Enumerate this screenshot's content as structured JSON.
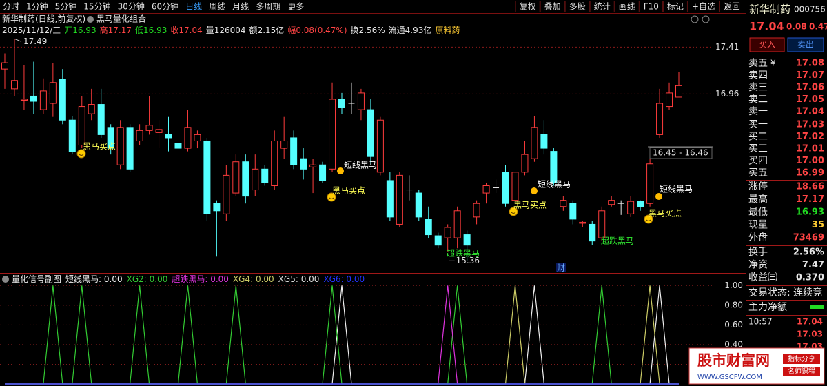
{
  "toolbar": {
    "left": [
      "分时",
      "1分钟",
      "5分钟",
      "15分钟",
      "30分钟",
      "60分钟",
      "日线",
      "周线",
      "月线",
      "多周期",
      "更多"
    ],
    "active_index": 6,
    "right": [
      "复权",
      "叠加",
      "多股",
      "统计",
      "画线",
      "F10",
      "标记",
      "+自选",
      "返回"
    ]
  },
  "header": {
    "title": "新华制药(日线,前复权)",
    "indicator": "黑马量化组合",
    "date": "2025/11/12/三",
    "stats": [
      {
        "label": "开",
        "value": "16.93",
        "color": "#22dd22"
      },
      {
        "label": "高",
        "value": "17.17",
        "color": "#ff4444"
      },
      {
        "label": "低",
        "value": "16.93",
        "color": "#22dd22"
      },
      {
        "label": "收",
        "value": "17.04",
        "color": "#ff4444"
      },
      {
        "label": "量",
        "value": "126004",
        "color": "#e6e6e6"
      },
      {
        "label": "额",
        "value": "2.15亿",
        "color": "#e6e6e6"
      },
      {
        "label": "幅",
        "value": "0.08(0.47%)",
        "color": "#ff4444"
      },
      {
        "label": "换",
        "value": "2.56%",
        "color": "#e6e6e6"
      },
      {
        "label": "流通",
        "value": "4.93亿",
        "color": "#e6e6e6"
      }
    ],
    "sector": "原料药"
  },
  "chart_data": [
    {
      "type": "candlestick",
      "open": [
        17.2,
        17.01,
        16.9,
        16.94,
        16.81,
        16.87,
        17.1,
        16.71,
        16.47,
        16.77,
        16.86,
        16.64,
        16.28,
        16.64,
        16.51,
        16.61,
        16.59,
        16.57,
        16.49,
        16.44,
        16.51,
        16.51,
        15.91,
        15.81,
        16.01,
        16.31,
        16.04,
        16.24,
        16.08,
        16.44,
        16.54,
        16.34,
        16.26,
        16.28,
        16.24,
        16.91,
        16.87,
        16.81,
        16.81,
        16.21,
        16.13,
        15.71,
        16.04,
        16.01,
        15.76,
        15.6,
        15.58,
        15.58,
        15.61,
        15.78,
        16.01,
        16.06,
        16.21,
        15.94,
        16.21,
        16.34,
        16.57,
        16.41,
        15.88,
        15.91,
        15.72,
        15.71,
        15.58,
        15.9,
        15.91,
        15.81,
        15.93,
        15.91,
        16.57,
        16.84,
        16.93
      ],
      "high": [
        17.35,
        17.49,
        17.24,
        17.27,
        17.11,
        17.26,
        17.2,
        16.75,
        16.94,
        17.01,
        17.01,
        16.67,
        16.71,
        16.67,
        16.67,
        16.94,
        16.71,
        16.74,
        16.54,
        16.81,
        16.61,
        16.54,
        15.94,
        16.28,
        16.38,
        16.38,
        16.38,
        16.28,
        16.61,
        16.74,
        16.61,
        16.44,
        16.34,
        16.31,
        17.07,
        16.97,
        17.07,
        17.01,
        16.91,
        16.74,
        16.21,
        16.21,
        16.18,
        16.04,
        15.88,
        15.63,
        15.71,
        15.88,
        15.65,
        15.94,
        16.11,
        16.14,
        16.28,
        16.24,
        16.51,
        16.75,
        16.71,
        16.44,
        15.98,
        15.94,
        15.74,
        15.74,
        15.88,
        15.98,
        15.94,
        15.98,
        15.94,
        16.34,
        17.01,
        17.07,
        17.17
      ],
      "low": [
        17.01,
        16.94,
        16.81,
        16.77,
        16.77,
        16.74,
        16.67,
        16.38,
        16.44,
        16.71,
        16.54,
        16.38,
        16.24,
        16.21,
        16.47,
        16.57,
        16.44,
        16.41,
        16.38,
        16.41,
        16.44,
        15.74,
        15.4,
        15.74,
        15.98,
        15.91,
        15.98,
        16.08,
        16.04,
        16.34,
        16.24,
        16.14,
        16.01,
        16.11,
        16.21,
        16.77,
        16.77,
        16.71,
        16.28,
        16.18,
        15.74,
        15.68,
        15.94,
        15.74,
        15.58,
        15.48,
        15.45,
        15.48,
        15.36,
        15.71,
        15.91,
        16.01,
        15.88,
        15.91,
        16.18,
        16.31,
        16.38,
        16.08,
        15.84,
        15.71,
        15.68,
        15.51,
        15.55,
        15.88,
        15.8,
        15.78,
        15.84,
        15.88,
        16.54,
        16.81,
        16.93
      ],
      "close": [
        17.26,
        17.09,
        16.91,
        16.89,
        16.99,
        17.07,
        16.71,
        16.41,
        16.84,
        16.86,
        16.57,
        16.44,
        16.64,
        16.24,
        16.61,
        16.66,
        16.62,
        16.54,
        16.44,
        16.64,
        16.57,
        15.81,
        15.84,
        16.18,
        16.31,
        15.98,
        16.24,
        16.11,
        16.51,
        16.51,
        16.28,
        16.24,
        16.28,
        16.13,
        16.91,
        16.83,
        16.87,
        16.97,
        16.36,
        16.71,
        15.78,
        16.18,
        16.04,
        15.78,
        15.61,
        15.51,
        15.68,
        15.84,
        15.51,
        15.91,
        16.08,
        16.06,
        15.91,
        16.21,
        16.38,
        16.64,
        16.44,
        16.11,
        15.94,
        15.76,
        15.73,
        15.55,
        15.84,
        15.94,
        15.91,
        15.93,
        15.88,
        16.29,
        16.87,
        16.97,
        17.04
      ],
      "up_color": "#ff3c3c",
      "down_color": "#54ffff",
      "doji_color": "#e6e6e6",
      "ylim": [
        15.25,
        17.73
      ],
      "yticks": [
        17.41,
        16.96
      ],
      "grid": true,
      "annotations": [
        {
          "text": "黑马买点",
          "color": "#ffff55"
        },
        {
          "text": "短线黑马",
          "color": "#ffffff"
        },
        {
          "text": "黑马买点",
          "color": "#ffff55"
        },
        {
          "text": "超跌黑马",
          "color": "#33ee33"
        },
        {
          "text": "黑马买点",
          "color": "#ffff55"
        },
        {
          "text": "短线黑马",
          "color": "#ffffff"
        },
        {
          "text": "超跌黑马",
          "color": "#33ee33"
        },
        {
          "text": "短线黑马",
          "color": "#ffffff"
        },
        {
          "text": "黑马买点",
          "color": "#ffff55"
        }
      ],
      "news_marker": "财",
      "range_label": "16.45 - 16.46"
    },
    {
      "type": "line",
      "title": "量化信号副图",
      "legend_separator": ": ",
      "ylim": [
        0,
        1.1
      ],
      "yticks": [
        {
          "value": 1,
          "label": "1.00"
        },
        {
          "value": 0.8,
          "label": "0.80"
        },
        {
          "value": 0.6,
          "label": "0.60"
        },
        {
          "value": 0.4,
          "label": "0.40"
        },
        {
          "value": 0.2,
          "label": "0.20"
        }
      ],
      "grid": true,
      "series": [
        {
          "name": "短线黑马",
          "color": "#f0f0f0",
          "legend_value": "0.00",
          "values": [
            0,
            0,
            0,
            0,
            0,
            0,
            0,
            0,
            0,
            0,
            0,
            0,
            0,
            0,
            0,
            0,
            0,
            0,
            0,
            0,
            0,
            0,
            0,
            0,
            0,
            0,
            0,
            0,
            0,
            0,
            0,
            0,
            0,
            0,
            0,
            1,
            0,
            0,
            0,
            0,
            0,
            0,
            0,
            0,
            0,
            0,
            0,
            0,
            0,
            0,
            0,
            0,
            0,
            0,
            0,
            1,
            0,
            0,
            0,
            0,
            0,
            0,
            0,
            0,
            0,
            0,
            0,
            0,
            1,
            0,
            0
          ]
        },
        {
          "name": "XG2",
          "color": "#33cc33",
          "legend_value": "0.00",
          "values": [
            0,
            0,
            0,
            0,
            0,
            1,
            0,
            0,
            1,
            0,
            0,
            0,
            0,
            0,
            1,
            0,
            0,
            0,
            0,
            1,
            0,
            0,
            0,
            0,
            1,
            0,
            0,
            0,
            0,
            0,
            0,
            0,
            0,
            0,
            1,
            0,
            0,
            0,
            0,
            0,
            0,
            0,
            0,
            0,
            0,
            0,
            0,
            1,
            0,
            0,
            0,
            0,
            0,
            0,
            0,
            0,
            0,
            0,
            0,
            0,
            0,
            0,
            1,
            0,
            0,
            0,
            0,
            0,
            0,
            0,
            0
          ]
        },
        {
          "name": "超跌黑马",
          "color": "#dd33dd",
          "legend_value": "0.00",
          "values": [
            0,
            0,
            0,
            0,
            0,
            0,
            0,
            0,
            0,
            0,
            0,
            0,
            0,
            0,
            0,
            0,
            0,
            0,
            0,
            0,
            0,
            0,
            0,
            0,
            0,
            0,
            0,
            0,
            0,
            0,
            0,
            0,
            0,
            0,
            0,
            0,
            0,
            0,
            0,
            0,
            0,
            0,
            0,
            0,
            0,
            0,
            1,
            0,
            0,
            0,
            0,
            0,
            0,
            0,
            0,
            0,
            0,
            0,
            0,
            0,
            0,
            0,
            0,
            0,
            0,
            0,
            0,
            0,
            0,
            0,
            0
          ]
        },
        {
          "name": "XG4",
          "color": "#cccc66",
          "legend_value": "0.00",
          "values": [
            0,
            0,
            0,
            0,
            0,
            0,
            0,
            0,
            0,
            0,
            0,
            0,
            0,
            0,
            0,
            0,
            0,
            0,
            0,
            0,
            0,
            0,
            0,
            0,
            0,
            0,
            0,
            0,
            0,
            0,
            0,
            0,
            0,
            0,
            0,
            0,
            0,
            0,
            0,
            0,
            0,
            0,
            0,
            0,
            0,
            0,
            0,
            0,
            0,
            0,
            0,
            0,
            0,
            1,
            0,
            0,
            0,
            0,
            0,
            0,
            0,
            0,
            0,
            0,
            0,
            0,
            0,
            1,
            0,
            0,
            0
          ]
        },
        {
          "name": "XG5",
          "color": "#dddddd",
          "legend_value": "0.00",
          "values": [
            0,
            0,
            0,
            0,
            0,
            0,
            0,
            0,
            0,
            0,
            0,
            0,
            0,
            0,
            0,
            0,
            0,
            0,
            0,
            0,
            0,
            0,
            0,
            0,
            0,
            0,
            0,
            0,
            0,
            0,
            0,
            0,
            0,
            0,
            0,
            0,
            0,
            0,
            0,
            0,
            0,
            0,
            0,
            0,
            0,
            0,
            0,
            0,
            0,
            0,
            0,
            0,
            0,
            0,
            0,
            0,
            0,
            0,
            0,
            0,
            0,
            0,
            0,
            0,
            0,
            0,
            0,
            0,
            0,
            0,
            0
          ]
        },
        {
          "name": "XG6",
          "color": "#2233ff",
          "legend_value": "0.00",
          "values": [
            0,
            0,
            0,
            0,
            0,
            0,
            0,
            0,
            0,
            0,
            0,
            0,
            0,
            0,
            0,
            0,
            0,
            0,
            0,
            0,
            0,
            0,
            0,
            0,
            0,
            0,
            0,
            0,
            0,
            0,
            0,
            0,
            0,
            0,
            0,
            0,
            0,
            0,
            0,
            0,
            0,
            0,
            0,
            0,
            0,
            0,
            0,
            0,
            0,
            0,
            0,
            0,
            0,
            0,
            0,
            0,
            0,
            0,
            0,
            0,
            0,
            0,
            0,
            0,
            0,
            0,
            0,
            0,
            0,
            0,
            0
          ]
        }
      ]
    }
  ],
  "sidebar": {
    "name": "新华制药",
    "code": "000756",
    "price": "17.04",
    "change": "0.08",
    "change_pct": "0.47",
    "buy": "买入",
    "sell": "卖出",
    "currency": "¥",
    "asks": [
      {
        "label": "卖五",
        "price": "17.08"
      },
      {
        "label": "卖四",
        "price": "17.07"
      },
      {
        "label": "卖三",
        "price": "17.06"
      },
      {
        "label": "卖二",
        "price": "17.05"
      },
      {
        "label": "卖一",
        "price": "17.04"
      }
    ],
    "bids": [
      {
        "label": "买一",
        "price": "17.03"
      },
      {
        "label": "买二",
        "price": "17.02"
      },
      {
        "label": "买三",
        "price": "17.01"
      },
      {
        "label": "买四",
        "price": "17.00"
      },
      {
        "label": "买五",
        "price": "16.99"
      }
    ],
    "stats": [
      {
        "label": "涨停",
        "value": "18.66",
        "color": "#ff4444"
      },
      {
        "label": "最高",
        "value": "17.17",
        "color": "#ff4444"
      },
      {
        "label": "最低",
        "value": "16.93",
        "color": "#22dd22"
      },
      {
        "label": "现量",
        "value": "35",
        "color": "#ffcc33"
      },
      {
        "label": "外盘",
        "value": "73469",
        "color": "#ff4444"
      }
    ],
    "stats2": [
      {
        "label": "换手",
        "value": "2.56%",
        "color": "#e6e6e6"
      },
      {
        "label": "净资",
        "value": "7.47",
        "color": "#e6e6e6"
      },
      {
        "label": "收益㈢",
        "value": "0.370",
        "color": "#e6e6e6"
      }
    ],
    "status": "交易状态: 连续竞",
    "net_label": "主力净额",
    "trades": [
      {
        "time": "10:57",
        "price": "17.04"
      },
      {
        "price": "17.03"
      },
      {
        "price": "17.03"
      }
    ]
  },
  "watermark": {
    "name": "股市财富网",
    "tag1": "指标分享",
    "tag2": "名师课程",
    "url": "WWW.GSCFW.COM"
  }
}
